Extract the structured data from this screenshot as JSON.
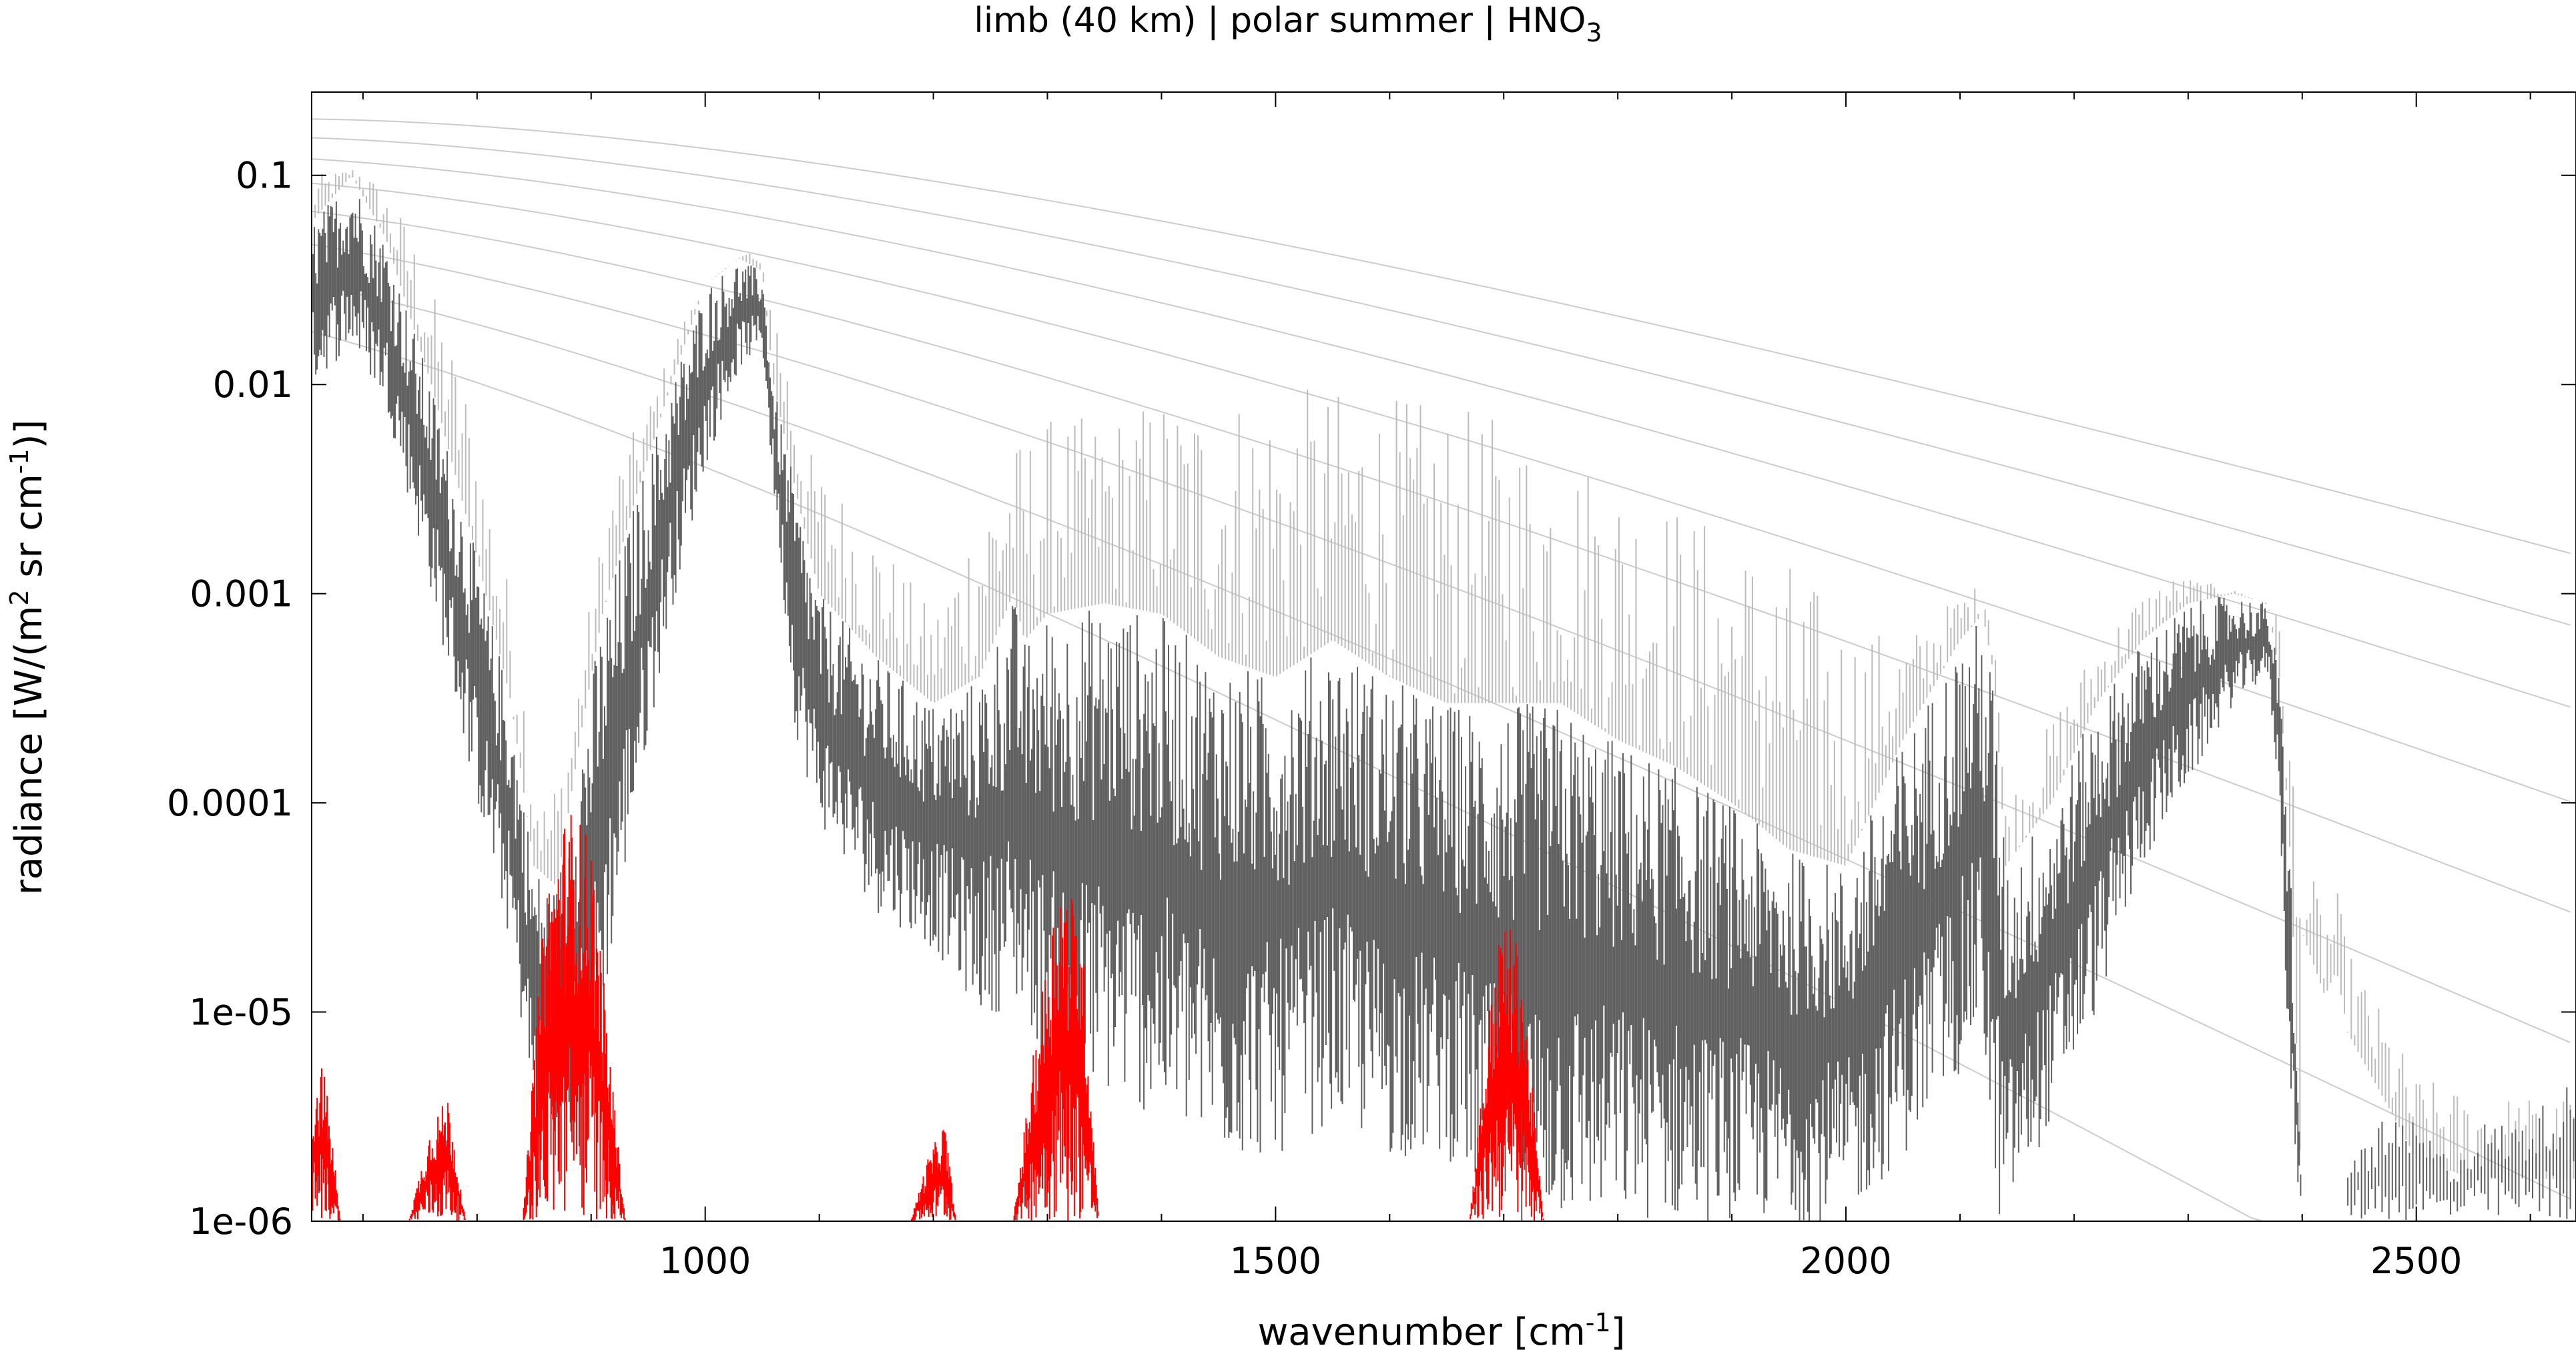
{
  "chart_data": {
    "type": "line",
    "title": "limb (40 km) | polar summer | HNO",
    "title_sub": "3",
    "xlabel": "wavenumber [cm",
    "xlabel_sup": "-1",
    "xlabel_end": "]",
    "ylabel_parts": [
      "radiance [W/(m",
      "2",
      " sr cm",
      "-1",
      ")]"
    ],
    "x_scale": "linear",
    "y_scale": "log",
    "xlim": [
      655,
      2640
    ],
    "ylim": [
      1e-06,
      0.25
    ],
    "x_ticks": [
      {
        "value": 1000,
        "label": "1000"
      },
      {
        "value": 1500,
        "label": "1500"
      },
      {
        "value": 2000,
        "label": "2000"
      },
      {
        "value": 2500,
        "label": "2500"
      }
    ],
    "y_ticks": [
      {
        "value": 0.1,
        "label": "0.1"
      },
      {
        "value": 0.01,
        "label": "0.01"
      },
      {
        "value": 0.001,
        "label": "0.001"
      },
      {
        "value": 0.0001,
        "label": "0.0001"
      },
      {
        "value": 1e-05,
        "label": "1e-05"
      },
      {
        "value": 1e-06,
        "label": "1e-06"
      }
    ],
    "grid": false,
    "legend": "none",
    "series": [
      {
        "role": "background-planck-curves",
        "color": "#cccccc",
        "temperatures_K": [
          180,
          200,
          220,
          240,
          260,
          280,
          300,
          320
        ]
      },
      {
        "role": "upper-envelope",
        "color": "#bbbbbb",
        "x": [
          655,
          700,
          740,
          790,
          830,
          860,
          880,
          900,
          920,
          950,
          980,
          1000,
          1040,
          1060,
          1090,
          1150,
          1200,
          1240,
          1280,
          1300,
          1350,
          1400,
          1500,
          1600,
          1700,
          1800,
          1900,
          1950,
          2000,
          2050,
          2100,
          2130,
          2140,
          2200,
          2250,
          2280,
          2300,
          2350,
          2380,
          2400,
          2420,
          2430,
          2440,
          2500,
          2550,
          2600,
          2640
        ],
        "y": [
          0.1,
          0.11,
          0.06,
          0.01,
          0.001,
          0.0001,
          0.0002,
          0.001,
          0.004,
          0.008,
          0.02,
          0.03,
          0.045,
          0.03,
          0.005,
          0.002,
          0.0008,
          0.003,
          0.006,
          0.007,
          0.007,
          0.009,
          0.01,
          0.009,
          0.007,
          0.004,
          0.002,
          0.0015,
          0.0008,
          0.0006,
          0.001,
          0.0012,
          0.0001,
          0.0004,
          0.0009,
          0.0012,
          0.0012,
          0.001,
          0.0008,
          6e-05,
          3e-05,
          4e-05,
          2e-05,
          5e-06,
          4e-06,
          4e-06,
          4e-06
        ]
      },
      {
        "role": "main-band-max",
        "color": "#606060",
        "x": [
          655,
          690,
          720,
          760,
          800,
          830,
          850,
          870,
          890,
          910,
          940,
          970,
          1000,
          1030,
          1050,
          1060,
          1080,
          1100,
          1150,
          1200,
          1240,
          1270,
          1280,
          1300,
          1350,
          1400,
          1450,
          1500,
          1550,
          1600,
          1650,
          1700,
          1750,
          1800,
          1850,
          1900,
          1950,
          2000,
          2050,
          2100,
          2120,
          2130,
          2140,
          2180,
          2220,
          2260,
          2300,
          2340,
          2370,
          2380,
          2390,
          2400
        ],
        "y": [
          0.06,
          0.1,
          0.05,
          0.01,
          0.0015,
          0.0003,
          5e-05,
          4e-05,
          0.0002,
          0.0008,
          0.003,
          0.01,
          0.03,
          0.04,
          0.035,
          0.01,
          0.003,
          0.001,
          0.0005,
          0.0003,
          0.0004,
          0.001,
          0.0006,
          0.0008,
          0.0009,
          0.0008,
          0.0005,
          0.0004,
          0.0006,
          0.0004,
          0.0003,
          0.0003,
          0.0003,
          0.0002,
          0.00015,
          0.0001,
          6e-05,
          5e-05,
          0.0002,
          0.0006,
          0.0008,
          0.0004,
          5e-05,
          0.0001,
          0.0003,
          0.0006,
          0.0009,
          0.001,
          0.0009,
          0.0004,
          5e-05,
          1e-06
        ]
      },
      {
        "role": "main-band-min",
        "color": "#606060",
        "x": [
          655,
          690,
          720,
          760,
          800,
          830,
          850,
          870,
          890,
          910,
          940,
          970,
          1000,
          1030,
          1050,
          1060,
          1080,
          1100,
          1150,
          1200,
          1240,
          1270,
          1280,
          1300,
          1350,
          1400,
          1450,
          1500,
          1550,
          1600,
          1650,
          1700,
          1750,
          1800,
          1850,
          1900,
          1950,
          2000,
          2050,
          2100,
          2120,
          2130,
          2140,
          2180,
          2220,
          2260,
          2300,
          2340,
          2370,
          2380,
          2390,
          2400
        ],
        "y": [
          0.01,
          0.015,
          0.008,
          0.001,
          0.0001,
          2e-05,
          3e-06,
          2e-06,
          3e-06,
          1e-05,
          0.0001,
          0.0008,
          0.004,
          0.012,
          0.015,
          0.003,
          0.0002,
          8e-05,
          3e-05,
          2e-05,
          1e-05,
          1e-05,
          1e-05,
          5e-06,
          4e-06,
          3e-06,
          2e-06,
          2e-06,
          3e-06,
          2e-06,
          2e-06,
          1e-06,
          1e-06,
          1e-06,
          1e-06,
          1e-06,
          1e-06,
          1e-06,
          2e-06,
          5e-06,
          8e-06,
          1e-06,
          1e-06,
          3e-06,
          1e-05,
          5e-05,
          0.00012,
          0.0003,
          0.0004,
          0.0001,
          3e-06,
          1e-06
        ]
      },
      {
        "role": "high-wavenumber-tail",
        "color": "#606060",
        "x": [
          2440,
          2470,
          2500,
          2530,
          2560,
          2590,
          2620,
          2640
        ],
        "y": [
          2e-06,
          3e-06,
          3e-06,
          2e-06,
          3e-06,
          3e-06,
          4e-06,
          5e-06
        ]
      },
      {
        "role": "HNO3-contribution",
        "color": "#ff0000",
        "bands": [
          {
            "x": [
              655,
              665,
              675,
              680
            ],
            "y": [
              4e-06,
              6e-06,
              2e-06,
              1e-06
            ]
          },
          {
            "x": [
              740,
              760,
              775,
              790
            ],
            "y": [
              1e-06,
              3e-06,
              4e-06,
              1e-06
            ]
          },
          {
            "x": [
              840,
              860,
              880,
              900,
              915,
              930
            ],
            "y": [
              1e-06,
              4e-05,
              0.0001,
              7e-05,
              8e-06,
              1e-06
            ]
          },
          {
            "x": [
              1180,
              1195,
              1210,
              1220
            ],
            "y": [
              1e-06,
              2e-06,
              3e-06,
              1e-06
            ]
          },
          {
            "x": [
              1270,
              1290,
              1310,
              1330,
              1345
            ],
            "y": [
              1e-06,
              8e-06,
              5e-05,
              3e-05,
              1e-06
            ]
          },
          {
            "x": [
              1670,
              1690,
              1700,
              1715,
              1735
            ],
            "y": [
              1e-06,
              1.5e-05,
              3e-05,
              2e-05,
              1e-06
            ]
          }
        ]
      }
    ]
  }
}
